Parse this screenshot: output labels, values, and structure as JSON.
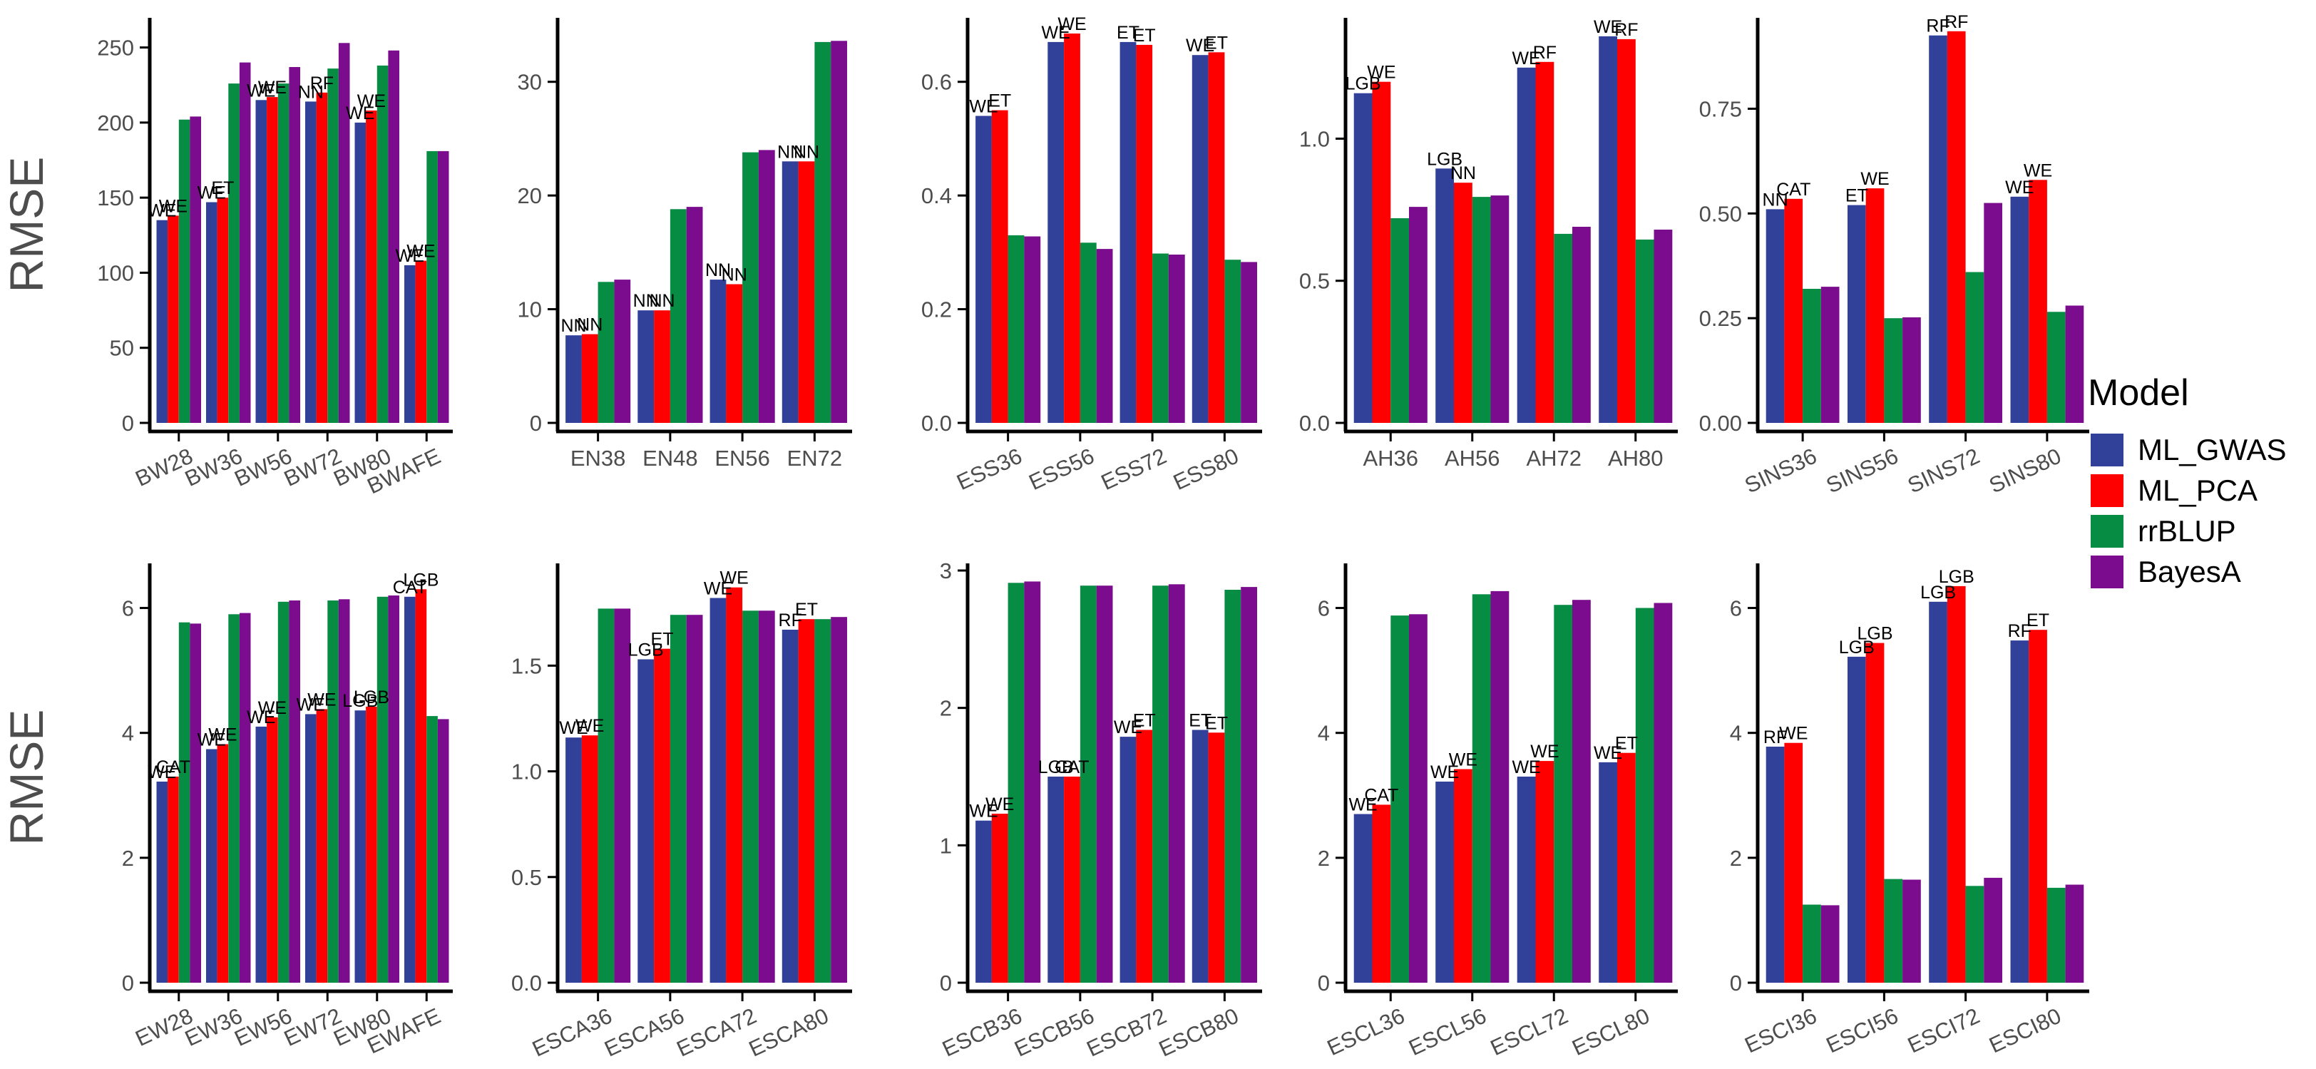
{
  "chart_data": {
    "type": "bar",
    "grouping": "grouped",
    "legend": {
      "title": "Model",
      "position": "right",
      "entries": [
        {
          "name": "ML_GWAS",
          "color": "#31419A"
        },
        {
          "name": "ML_PCA",
          "color": "#FF0000"
        },
        {
          "name": "rrBLUP",
          "color": "#078C43"
        },
        {
          "name": "BayesA",
          "color": "#7B0C8E"
        }
      ]
    },
    "row_ylabels": [
      "RMSE",
      "RMSE"
    ],
    "panels": [
      {
        "categories": [
          "BW28",
          "BW36",
          "BW56",
          "BW72",
          "BW80",
          "BWAFE"
        ],
        "rotate_labels": true,
        "ylim": [
          0,
          265
        ],
        "yticks": [
          0,
          50,
          100,
          150,
          200,
          250
        ],
        "ytick_labels": [
          "0",
          "50",
          "100",
          "150",
          "200",
          "250"
        ],
        "series": [
          {
            "name": "ML_GWAS",
            "values": [
              135,
              147,
              215,
              214,
              200,
              105
            ]
          },
          {
            "name": "ML_PCA",
            "values": [
              138,
              150,
              217,
              220,
              208,
              108
            ]
          },
          {
            "name": "rrBLUP",
            "values": [
              202,
              226,
              226,
              236,
              238,
              181
            ]
          },
          {
            "name": "BayesA",
            "values": [
              204,
              240,
              237,
              253,
              248,
              181
            ]
          }
        ],
        "annotations": [
          [
            "WE",
            "WE"
          ],
          [
            "WE",
            "ET"
          ],
          [
            "WE",
            "WE"
          ],
          [
            "NN",
            "RF"
          ],
          [
            "WE",
            "WE"
          ],
          [
            "WE",
            "WE"
          ]
        ]
      },
      {
        "categories": [
          "EN38",
          "EN48",
          "EN56",
          "EN72"
        ],
        "rotate_labels": false,
        "ylim": [
          0,
          35
        ],
        "yticks": [
          0,
          10,
          20,
          30
        ],
        "ytick_labels": [
          "0",
          "10",
          "20",
          "30"
        ],
        "series": [
          {
            "name": "ML_GWAS",
            "values": [
              7.7,
              9.9,
              12.6,
              23.0
            ]
          },
          {
            "name": "ML_PCA",
            "values": [
              7.8,
              9.9,
              12.2,
              23.0
            ]
          },
          {
            "name": "rrBLUP",
            "values": [
              12.4,
              18.8,
              23.8,
              33.5
            ]
          },
          {
            "name": "BayesA",
            "values": [
              12.6,
              19.0,
              24.0,
              33.6
            ]
          }
        ],
        "annotations": [
          [
            "NN",
            "NN"
          ],
          [
            "NN",
            "NN"
          ],
          [
            "NN",
            "NN"
          ],
          [
            "NN",
            "NN"
          ]
        ]
      },
      {
        "categories": [
          "ESS36",
          "ESS56",
          "ESS72",
          "ESS80"
        ],
        "rotate_labels": true,
        "ylim": [
          0,
          0.7
        ],
        "yticks": [
          0,
          0.2,
          0.4,
          0.6
        ],
        "ytick_labels": [
          "0.0",
          "0.2",
          "0.4",
          "0.6"
        ],
        "series": [
          {
            "name": "ML_GWAS",
            "values": [
              0.54,
              0.67,
              0.67,
              0.647
            ]
          },
          {
            "name": "ML_PCA",
            "values": [
              0.55,
              0.685,
              0.665,
              0.652
            ]
          },
          {
            "name": "rrBLUP",
            "values": [
              0.33,
              0.317,
              0.298,
              0.287
            ]
          },
          {
            "name": "BayesA",
            "values": [
              0.328,
              0.306,
              0.296,
              0.283
            ]
          }
        ],
        "annotations": [
          [
            "WE",
            "ET"
          ],
          [
            "WE",
            "WE"
          ],
          [
            "ET",
            "ET"
          ],
          [
            "WE",
            "ET"
          ]
        ]
      },
      {
        "categories": [
          "AH36",
          "AH56",
          "AH72",
          "AH80"
        ],
        "rotate_labels": false,
        "ylim": [
          0,
          1.4
        ],
        "yticks": [
          0,
          0.5,
          1.0
        ],
        "ytick_labels": [
          "0.0",
          "0.5",
          "1.0"
        ],
        "series": [
          {
            "name": "ML_GWAS",
            "values": [
              1.16,
              0.895,
              1.25,
              1.36
            ]
          },
          {
            "name": "ML_PCA",
            "values": [
              1.2,
              0.845,
              1.27,
              1.35
            ]
          },
          {
            "name": "rrBLUP",
            "values": [
              0.72,
              0.795,
              0.665,
              0.645
            ]
          },
          {
            "name": "BayesA",
            "values": [
              0.76,
              0.8,
              0.69,
              0.68
            ]
          }
        ],
        "annotations": [
          [
            "LGB",
            "WE"
          ],
          [
            "LGB",
            "NN"
          ],
          [
            "WE",
            "RF"
          ],
          [
            "WE",
            "RF"
          ]
        ]
      },
      {
        "categories": [
          "SINS36",
          "SINS56",
          "SINS72",
          "SINS80"
        ],
        "rotate_labels": true,
        "ylim": [
          0,
          0.95
        ],
        "yticks": [
          0,
          0.25,
          0.5,
          0.75
        ],
        "ytick_labels": [
          "0.00",
          "0.25",
          "0.50",
          "0.75"
        ],
        "series": [
          {
            "name": "ML_GWAS",
            "values": [
              0.51,
              0.52,
              0.925,
              0.54
            ]
          },
          {
            "name": "ML_PCA",
            "values": [
              0.535,
              0.56,
              0.935,
              0.58
            ]
          },
          {
            "name": "rrBLUP",
            "values": [
              0.32,
              0.25,
              0.36,
              0.265
            ]
          },
          {
            "name": "BayesA",
            "values": [
              0.325,
              0.252,
              0.525,
              0.28
            ]
          }
        ],
        "annotations": [
          [
            "NN",
            "CAT"
          ],
          [
            "ET",
            "WE"
          ],
          [
            "RF",
            "RF"
          ],
          [
            "WE",
            "WE"
          ]
        ]
      },
      {
        "categories": [
          "EW28",
          "EW36",
          "EW56",
          "EW72",
          "EW80",
          "EWAFE"
        ],
        "rotate_labels": true,
        "ylim": [
          0,
          6.6
        ],
        "yticks": [
          0,
          2,
          4,
          6
        ],
        "ytick_labels": [
          "0",
          "2",
          "4",
          "6"
        ],
        "series": [
          {
            "name": "ML_GWAS",
            "values": [
              3.22,
              3.74,
              4.1,
              4.3,
              4.36,
              6.18
            ]
          },
          {
            "name": "ML_PCA",
            "values": [
              3.3,
              3.82,
              4.25,
              4.38,
              4.42,
              6.3
            ]
          },
          {
            "name": "rrBLUP",
            "values": [
              5.77,
              5.9,
              6.1,
              6.12,
              6.18,
              4.27
            ]
          },
          {
            "name": "BayesA",
            "values": [
              5.75,
              5.92,
              6.12,
              6.14,
              6.2,
              4.22
            ]
          }
        ],
        "annotations": [
          [
            "WE",
            "CAT"
          ],
          [
            "WE",
            "WE"
          ],
          [
            "WE",
            "WE"
          ],
          [
            "WE",
            "WE"
          ],
          [
            "LGB",
            "LGB"
          ],
          [
            "CAT",
            "LGB"
          ]
        ]
      },
      {
        "categories": [
          "ESCA36",
          "ESCA56",
          "ESCA72",
          "ESCA80"
        ],
        "rotate_labels": true,
        "ylim": [
          0,
          1.95
        ],
        "yticks": [
          0,
          0.5,
          1.0,
          1.5
        ],
        "ytick_labels": [
          "0.0",
          "0.5",
          "1.0",
          "1.5"
        ],
        "series": [
          {
            "name": "ML_GWAS",
            "values": [
              1.16,
              1.53,
              1.82,
              1.67
            ]
          },
          {
            "name": "ML_PCA",
            "values": [
              1.17,
              1.58,
              1.87,
              1.72
            ]
          },
          {
            "name": "rrBLUP",
            "values": [
              1.77,
              1.74,
              1.76,
              1.72
            ]
          },
          {
            "name": "BayesA",
            "values": [
              1.77,
              1.74,
              1.76,
              1.73
            ]
          }
        ],
        "annotations": [
          [
            "WE",
            "WE"
          ],
          [
            "LGB",
            "ET"
          ],
          [
            "WE",
            "WE"
          ],
          [
            "RF",
            "ET"
          ]
        ]
      },
      {
        "categories": [
          "ESCB36",
          "ESCB56",
          "ESCB72",
          "ESCB80"
        ],
        "rotate_labels": true,
        "ylim": [
          0,
          3.0
        ],
        "yticks": [
          0,
          1,
          2,
          3
        ],
        "ytick_labels": [
          "0",
          "1",
          "2",
          "3"
        ],
        "series": [
          {
            "name": "ML_GWAS",
            "values": [
              1.18,
              1.5,
              1.79,
              1.84
            ]
          },
          {
            "name": "ML_PCA",
            "values": [
              1.23,
              1.5,
              1.84,
              1.82
            ]
          },
          {
            "name": "rrBLUP",
            "values": [
              2.91,
              2.89,
              2.89,
              2.86
            ]
          },
          {
            "name": "BayesA",
            "values": [
              2.92,
              2.89,
              2.9,
              2.88
            ]
          }
        ],
        "annotations": [
          [
            "WE",
            "WE"
          ],
          [
            "LGB",
            "CAT"
          ],
          [
            "WE",
            "ET"
          ],
          [
            "ET",
            "ET"
          ]
        ]
      },
      {
        "categories": [
          "ESCL36",
          "ESCL56",
          "ESCL72",
          "ESCL80"
        ],
        "rotate_labels": true,
        "ylim": [
          0,
          6.6
        ],
        "yticks": [
          0,
          2,
          4,
          6
        ],
        "ytick_labels": [
          "0",
          "2",
          "4",
          "6"
        ],
        "series": [
          {
            "name": "ML_GWAS",
            "values": [
              2.7,
              3.22,
              3.3,
              3.53
            ]
          },
          {
            "name": "ML_PCA",
            "values": [
              2.85,
              3.42,
              3.55,
              3.68
            ]
          },
          {
            "name": "rrBLUP",
            "values": [
              5.88,
              6.22,
              6.05,
              6.0
            ]
          },
          {
            "name": "BayesA",
            "values": [
              5.9,
              6.27,
              6.13,
              6.08
            ]
          }
        ],
        "annotations": [
          [
            "WE",
            "CAT"
          ],
          [
            "WE",
            "WE"
          ],
          [
            "WE",
            "WE"
          ],
          [
            "WE",
            "ET"
          ]
        ]
      },
      {
        "categories": [
          "ESCI36",
          "ESCI56",
          "ESCI72",
          "ESCI80"
        ],
        "rotate_labels": true,
        "ylim": [
          0,
          6.6
        ],
        "yticks": [
          0,
          2,
          4,
          6
        ],
        "ytick_labels": [
          "0",
          "2",
          "4",
          "6"
        ],
        "series": [
          {
            "name": "ML_GWAS",
            "values": [
              3.78,
              5.22,
              6.1,
              5.48
            ]
          },
          {
            "name": "ML_PCA",
            "values": [
              3.84,
              5.44,
              6.35,
              5.65
            ]
          },
          {
            "name": "rrBLUP",
            "values": [
              1.25,
              1.66,
              1.55,
              1.52
            ]
          },
          {
            "name": "BayesA",
            "values": [
              1.24,
              1.65,
              1.68,
              1.57
            ]
          }
        ],
        "annotations": [
          [
            "RF",
            "WE"
          ],
          [
            "LGB",
            "LGB"
          ],
          [
            "LGB",
            "LGB"
          ],
          [
            "RF",
            "ET"
          ]
        ]
      }
    ]
  }
}
